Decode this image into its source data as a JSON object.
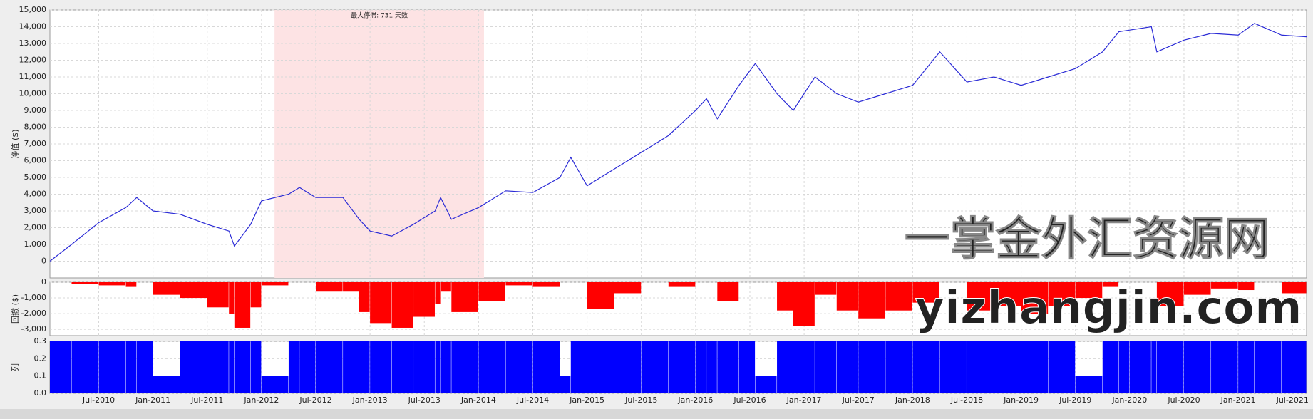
{
  "chart_data": [
    {
      "type": "line",
      "ylabel": "净值 ($)",
      "color": "#2b2bd6",
      "annotation": "最大停滞: 731 天数",
      "span": [
        2012.12,
        2014.05
      ],
      "xlim": [
        2010.05,
        2021.63
      ],
      "xticks": [
        {
          "value": 2010.5,
          "label": "Jul-2010"
        },
        {
          "value": 2011.0,
          "label": "Jan-2011"
        },
        {
          "value": 2011.5,
          "label": "Jul-2011"
        },
        {
          "value": 2012.0,
          "label": "Jan-2012"
        },
        {
          "value": 2012.5,
          "label": "Jul-2012"
        },
        {
          "value": 2013.0,
          "label": "Jan-2013"
        },
        {
          "value": 2013.5,
          "label": "Jul-2013"
        },
        {
          "value": 2014.0,
          "label": "Jan-2014"
        },
        {
          "value": 2014.5,
          "label": "Jul-2014"
        },
        {
          "value": 2015.0,
          "label": "Jan-2015"
        },
        {
          "value": 2015.5,
          "label": "Jul-2015"
        },
        {
          "value": 2016.0,
          "label": "Jan-2016"
        },
        {
          "value": 2016.5,
          "label": "Jul-2016"
        },
        {
          "value": 2017.0,
          "label": "Jan-2017"
        },
        {
          "value": 2017.5,
          "label": "Jul-2017"
        },
        {
          "value": 2018.0,
          "label": "Jan-2018"
        },
        {
          "value": 2018.5,
          "label": "Jul-2018"
        },
        {
          "value": 2019.0,
          "label": "Jan-2019"
        },
        {
          "value": 2019.5,
          "label": "Jul-2019"
        },
        {
          "value": 2020.0,
          "label": "Jan-2020"
        },
        {
          "value": 2020.5,
          "label": "Jul-2020"
        },
        {
          "value": 2021.0,
          "label": "Jan-2021"
        },
        {
          "value": 2021.5,
          "label": "Jul-2021"
        }
      ],
      "ylim": [
        -1000,
        15000
      ],
      "yticks": [
        0,
        {
          "value": 1000,
          "label": "1,000"
        },
        {
          "value": 2000,
          "label": "2,000"
        },
        {
          "value": 3000,
          "label": "3,000"
        },
        {
          "value": 4000,
          "label": "4,000"
        },
        {
          "value": 5000,
          "label": "5,000"
        },
        {
          "value": 6000,
          "label": "6,000"
        },
        {
          "value": 7000,
          "label": "7,000"
        },
        {
          "value": 8000,
          "label": "8,000"
        },
        {
          "value": 9000,
          "label": "9,000"
        },
        {
          "value": 10000,
          "label": "10,000"
        },
        {
          "value": 11000,
          "label": "11,000"
        },
        {
          "value": 12000,
          "label": "12,000"
        },
        {
          "value": 13000,
          "label": "13,000"
        },
        {
          "value": 14000,
          "label": "14,000"
        },
        {
          "value": 15000,
          "label": "15,000"
        }
      ],
      "x": [
        2010.05,
        2010.25,
        2010.5,
        2010.75,
        2010.85,
        2011.0,
        2011.25,
        2011.5,
        2011.7,
        2011.75,
        2011.9,
        2012.0,
        2012.25,
        2012.35,
        2012.5,
        2012.75,
        2012.9,
        2013.0,
        2013.2,
        2013.4,
        2013.6,
        2013.65,
        2013.75,
        2014.0,
        2014.25,
        2014.5,
        2014.75,
        2014.85,
        2015.0,
        2015.25,
        2015.5,
        2015.75,
        2016.0,
        2016.1,
        2016.2,
        2016.4,
        2016.55,
        2016.75,
        2016.9,
        2017.1,
        2017.3,
        2017.5,
        2017.75,
        2018.0,
        2018.25,
        2018.5,
        2018.75,
        2019.0,
        2019.25,
        2019.5,
        2019.75,
        2019.9,
        2020.0,
        2020.2,
        2020.25,
        2020.5,
        2020.75,
        2021.0,
        2021.15,
        2021.4,
        2021.63
      ],
      "values": [
        0,
        1000,
        2300,
        3200,
        3800,
        3000,
        2800,
        2200,
        1800,
        900,
        2200,
        3600,
        4000,
        4400,
        3800,
        3800,
        2500,
        1800,
        1500,
        2200,
        3000,
        3800,
        2500,
        3200,
        4200,
        4100,
        5000,
        6200,
        4500,
        5500,
        6500,
        7500,
        9000,
        9700,
        8500,
        10500,
        11800,
        10000,
        9000,
        11000,
        10000,
        9500,
        10000,
        10500,
        12500,
        10700,
        11000,
        10500,
        11000,
        11500,
        12500,
        13700,
        13800,
        14000,
        12500,
        13200,
        13600,
        13500,
        14200,
        13500,
        13400
      ]
    },
    {
      "type": "bar",
      "ylabel": "回撤 ($)",
      "color": "#ff0000",
      "xlim": [
        2010.05,
        2021.63
      ],
      "ylim": [
        -3400,
        0
      ],
      "yticks": [
        0,
        {
          "value": -1000,
          "label": "-1,000"
        },
        {
          "value": -2000,
          "label": "-2,000"
        },
        {
          "value": -3000,
          "label": "-3,000"
        }
      ],
      "x": [
        2010.05,
        2010.25,
        2010.5,
        2010.75,
        2010.85,
        2011.0,
        2011.25,
        2011.5,
        2011.7,
        2011.75,
        2011.9,
        2012.0,
        2012.25,
        2012.35,
        2012.5,
        2012.75,
        2012.9,
        2013.0,
        2013.2,
        2013.4,
        2013.6,
        2013.65,
        2013.75,
        2014.0,
        2014.25,
        2014.5,
        2014.75,
        2014.85,
        2015.0,
        2015.25,
        2015.5,
        2015.75,
        2016.0,
        2016.1,
        2016.2,
        2016.4,
        2016.55,
        2016.75,
        2016.9,
        2017.1,
        2017.3,
        2017.5,
        2017.75,
        2018.0,
        2018.25,
        2018.5,
        2018.75,
        2019.0,
        2019.25,
        2019.5,
        2019.75,
        2019.9,
        2020.0,
        2020.2,
        2020.25,
        2020.5,
        2020.75,
        2021.0,
        2021.15,
        2021.4,
        2021.63
      ],
      "values": [
        0,
        -100,
        -200,
        -300,
        0,
        -800,
        -1000,
        -1600,
        -2000,
        -2900,
        -1600,
        -200,
        0,
        0,
        -600,
        -600,
        -1900,
        -2600,
        -2900,
        -2200,
        -1400,
        -600,
        -1900,
        -1200,
        -200,
        -300,
        0,
        0,
        -1700,
        -700,
        0,
        -300,
        0,
        0,
        -1200,
        0,
        0,
        -1800,
        -2800,
        -800,
        -1800,
        -2300,
        -1800,
        -1300,
        0,
        -1800,
        -1500,
        -2000,
        -1500,
        -1000,
        -300,
        0,
        0,
        0,
        -1500,
        -800,
        -400,
        -500,
        0,
        -700,
        -800
      ]
    },
    {
      "type": "bar",
      "ylabel": "列",
      "color": "#0000ff",
      "xlim": [
        2010.05,
        2021.63
      ],
      "ylim": [
        0,
        0.3
      ],
      "yticks": [
        {
          "value": 0,
          "label": "0.0"
        },
        0.1,
        0.2,
        0.3
      ],
      "x": [
        2010.05,
        2010.25,
        2010.5,
        2010.75,
        2010.85,
        2011.0,
        2011.25,
        2011.5,
        2011.7,
        2011.75,
        2011.9,
        2012.0,
        2012.25,
        2012.35,
        2012.5,
        2012.75,
        2012.9,
        2013.0,
        2013.2,
        2013.4,
        2013.6,
        2013.65,
        2013.75,
        2014.0,
        2014.25,
        2014.5,
        2014.75,
        2014.85,
        2015.0,
        2015.25,
        2015.5,
        2015.75,
        2016.0,
        2016.1,
        2016.2,
        2016.4,
        2016.55,
        2016.75,
        2016.9,
        2017.1,
        2017.3,
        2017.5,
        2017.75,
        2018.0,
        2018.25,
        2018.5,
        2018.75,
        2019.0,
        2019.25,
        2019.5,
        2019.75,
        2019.9,
        2020.0,
        2020.2,
        2020.25,
        2020.5,
        2020.75,
        2021.0,
        2021.15,
        2021.4,
        2021.63
      ],
      "values": [
        0.3,
        0.3,
        0.3,
        0.3,
        0.3,
        0.1,
        0.3,
        0.3,
        0.3,
        0.3,
        0.3,
        0.1,
        0.3,
        0.3,
        0.3,
        0.3,
        0.3,
        0.3,
        0.3,
        0.3,
        0.3,
        0.3,
        0.3,
        0.3,
        0.3,
        0.3,
        0.1,
        0.3,
        0.3,
        0.3,
        0.3,
        0.3,
        0.3,
        0.3,
        0.3,
        0.3,
        0.1,
        0.3,
        0.3,
        0.3,
        0.3,
        0.3,
        0.3,
        0.3,
        0.3,
        0.3,
        0.3,
        0.3,
        0.3,
        0.1,
        0.3,
        0.3,
        0.3,
        0.3,
        0.3,
        0.3,
        0.3,
        0.3,
        0.3,
        0.3,
        0.3
      ]
    }
  ],
  "watermark": [
    "一掌金外汇资源网",
    "yizhangjin.com"
  ]
}
